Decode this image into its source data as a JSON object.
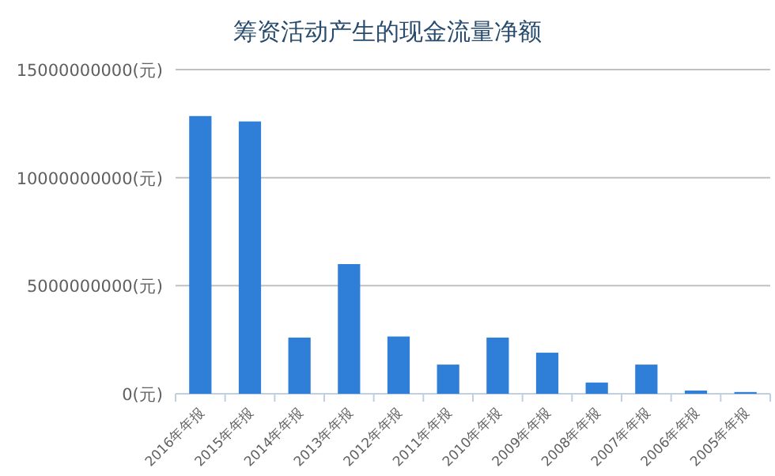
{
  "chart_data": {
    "type": "bar",
    "title": "筹资活动产生的现金流量净额",
    "categories": [
      "2016年年报",
      "2015年年报",
      "2014年年报",
      "2013年年报",
      "2012年年报",
      "2011年年报",
      "2010年年报",
      "2009年年报",
      "2008年年报",
      "2007年年报",
      "2006年年报",
      "2005年年报"
    ],
    "values": [
      12850000000,
      12600000000,
      2600000000,
      6000000000,
      2650000000,
      1350000000,
      2600000000,
      1900000000,
      520000000,
      1350000000,
      150000000,
      80000000
    ],
    "color": "#2f7ed8",
    "ylim": [
      0,
      15000000000
    ],
    "yticks": [
      {
        "value": 0,
        "label": "0(元)"
      },
      {
        "value": 5000000000,
        "label": "5000000000(元)"
      },
      {
        "value": 10000000000,
        "label": "10000000000(元)"
      },
      {
        "value": 15000000000,
        "label": "15000000000(元)"
      }
    ],
    "grid": "y"
  }
}
